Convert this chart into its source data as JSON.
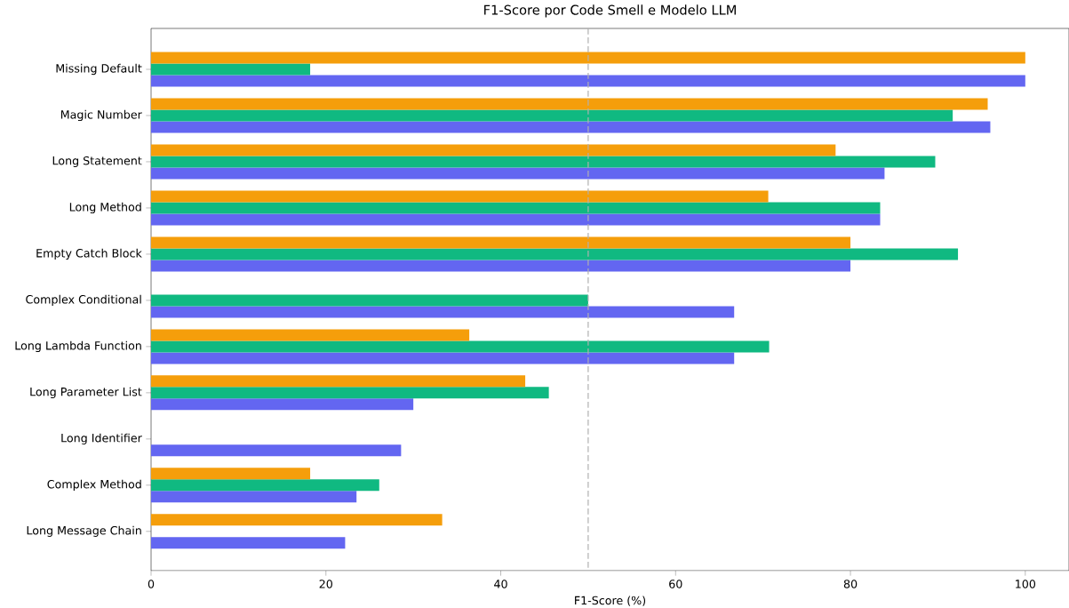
{
  "chart_data": {
    "type": "bar",
    "orientation": "horizontal",
    "title": "F1-Score por Code Smell e Modelo LLM",
    "xlabel": "F1-Score (%)",
    "categories": [
      "Missing Default",
      "Magic Number",
      "Long Statement",
      "Long Method",
      "Empty Catch Block",
      "Complex Conditional",
      "Long Lambda Function",
      "Long Parameter List",
      "Long Identifier",
      "Complex Method",
      "Long Message Chain"
    ],
    "series": [
      {
        "color": "#6366f1",
        "values": [
          100,
          96.0,
          83.9,
          83.4,
          80.0,
          66.7,
          66.7,
          30.0,
          28.6,
          23.5,
          22.2
        ]
      },
      {
        "color": "#10b981",
        "values": [
          18.2,
          91.7,
          89.7,
          83.4,
          92.3,
          50.0,
          70.7,
          45.5,
          0,
          26.1,
          0
        ]
      },
      {
        "color": "#f59e0b",
        "values": [
          100,
          95.7,
          78.3,
          70.6,
          80.0,
          0,
          36.4,
          42.8,
          0,
          18.2,
          33.3
        ]
      }
    ],
    "xlim": [
      0,
      105
    ],
    "xticks": [
      0,
      20,
      40,
      60,
      80,
      100
    ],
    "ref_lines": [
      {
        "axis": "x",
        "value": 50,
        "color": "#b0b0b0",
        "line_style": "dashed"
      }
    ]
  }
}
